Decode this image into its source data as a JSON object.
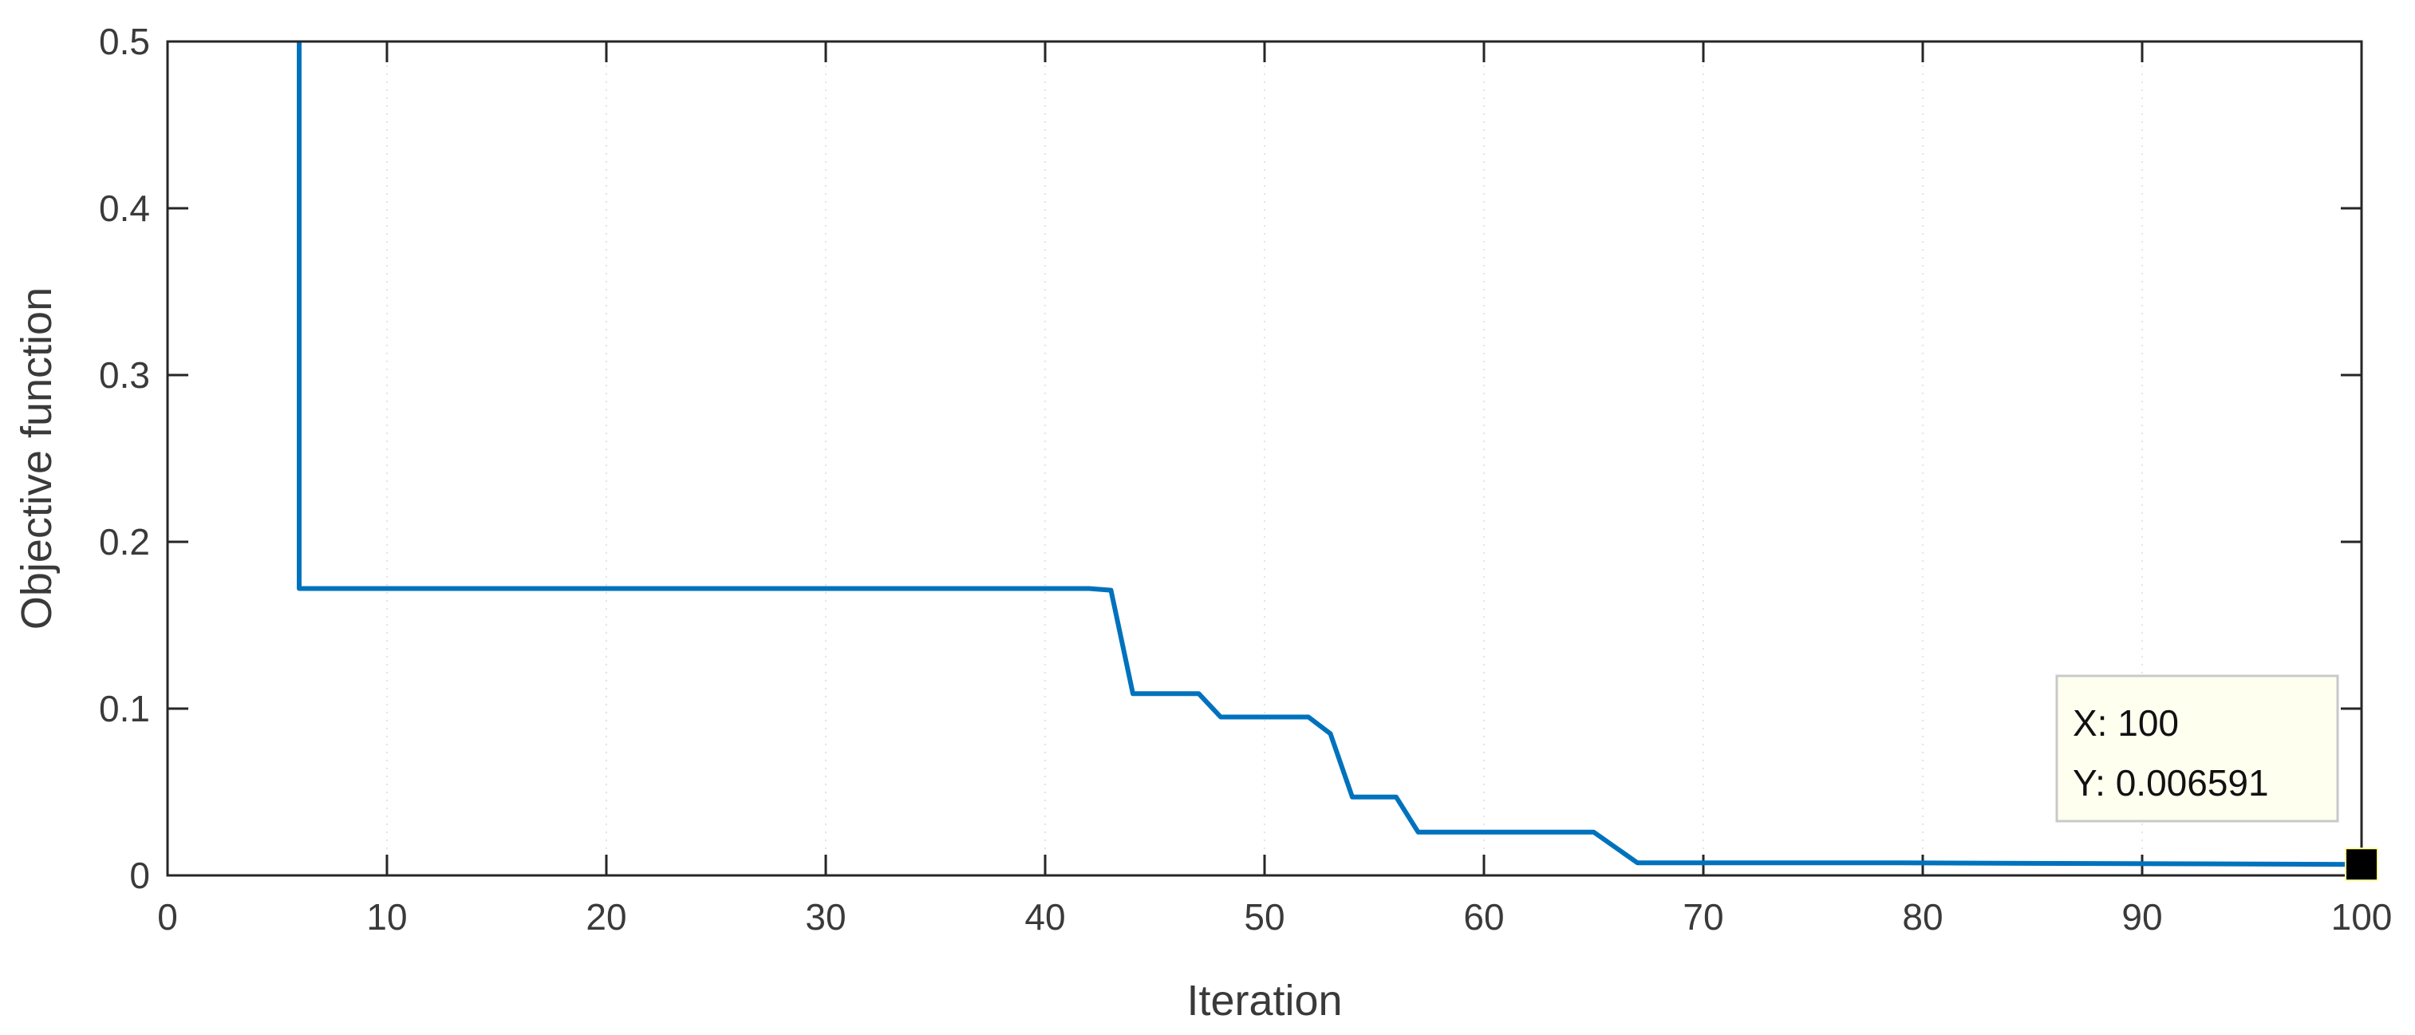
{
  "chart_data": {
    "type": "line",
    "title": "",
    "xlabel": "Iteration",
    "ylabel": "Objective function",
    "xlim": [
      0,
      100
    ],
    "ylim": [
      0,
      0.5
    ],
    "xticks": [
      0,
      10,
      20,
      30,
      40,
      50,
      60,
      70,
      80,
      90,
      100
    ],
    "yticks": [
      0,
      0.1,
      0.2,
      0.3,
      0.4,
      0.5
    ],
    "ytick_labels": [
      "0",
      "0.1",
      "0.2",
      "0.3",
      "0.4",
      "0.5"
    ],
    "grid": "faint vertical dotted",
    "legend": "none",
    "line_color": "#0072BD",
    "series": [
      {
        "x": [
          6,
          6,
          42,
          43,
          44,
          47,
          48,
          52,
          53,
          54,
          56,
          57,
          65,
          67,
          79,
          100
        ],
        "y": [
          0.5,
          0.172,
          0.172,
          0.171,
          0.109,
          0.109,
          0.095,
          0.095,
          0.085,
          0.047,
          0.047,
          0.026,
          0.026,
          0.0075,
          0.0075,
          0.006591
        ]
      }
    ],
    "datatip": {
      "x": 100,
      "y": 0.006591,
      "x_label": "X: 100",
      "y_label": "Y: 0.006591"
    }
  }
}
